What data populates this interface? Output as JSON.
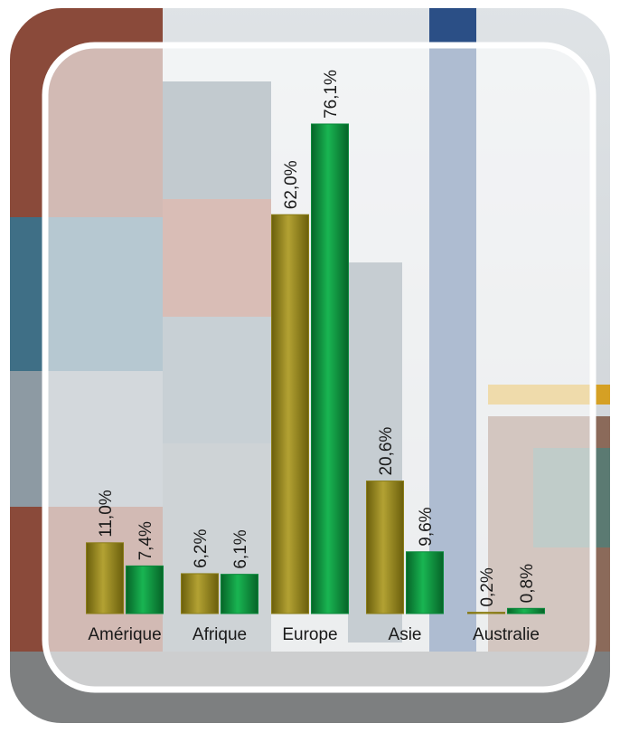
{
  "chart_data": {
    "type": "bar",
    "categories": [
      "Amérique",
      "Afrique",
      "Europe",
      "Asie",
      "Australie"
    ],
    "series": [
      {
        "color": "#8a7d18",
        "values": [
          11.0,
          6.2,
          62.0,
          20.6,
          0.2
        ],
        "value_labels": [
          "11,0%",
          "6,2%",
          "62,0%",
          "20,6%",
          "0,2%"
        ]
      },
      {
        "color": "#0b8a3c",
        "values": [
          7.4,
          6.1,
          76.1,
          9.6,
          0.8
        ],
        "value_labels": [
          "7,4%",
          "6,1%",
          "76,1%",
          "9,6%",
          "0,8%"
        ]
      }
    ]
  }
}
